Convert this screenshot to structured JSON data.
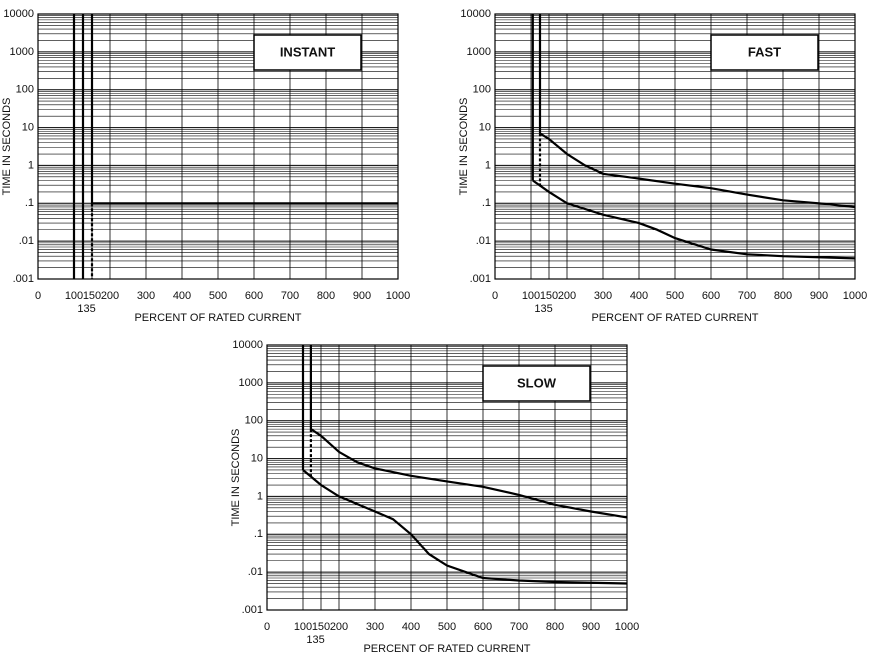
{
  "chart_data": [
    {
      "type": "line",
      "title": "INSTANT",
      "xlabel": "PERCENT OF RATED CURRENT",
      "ylabel": "TIME IN SECONDS",
      "yscale": "log",
      "grid": true,
      "xlim": [
        0,
        1000
      ],
      "xticks": [
        0,
        100,
        135,
        150,
        200,
        300,
        400,
        500,
        600,
        700,
        800,
        900,
        1000
      ],
      "ylim": [
        0.001,
        10000
      ],
      "yticks": [
        {
          "value": 0.001,
          "label": ".001"
        },
        {
          "value": 0.01,
          "label": ".01"
        },
        {
          "value": 0.1,
          "label": ".1"
        },
        1,
        10,
        100,
        1000,
        10000
      ],
      "series": [
        {
          "color": "#000000",
          "x": [
            100,
            100
          ],
          "values": [
            0.001,
            10000
          ]
        },
        {
          "color": "#000000",
          "x": [
            125,
            125
          ],
          "values": [
            0.001,
            10000
          ]
        },
        {
          "color": "#000000",
          "x": [
            150,
            150,
            1000
          ],
          "values": [
            10000,
            0.1,
            0.1
          ]
        },
        {
          "color": "#000000",
          "dashed": true,
          "x": [
            150,
            150
          ],
          "values": [
            0.1,
            0.001
          ]
        }
      ]
    },
    {
      "type": "line",
      "title": "FAST",
      "xlabel": "PERCENT OF RATED CURRENT",
      "ylabel": "TIME IN SECONDS",
      "yscale": "log",
      "grid": true,
      "xlim": [
        0,
        1000
      ],
      "xticks": [
        0,
        100,
        135,
        150,
        200,
        300,
        400,
        500,
        600,
        700,
        800,
        900,
        1000
      ],
      "ylim": [
        0.001,
        10000
      ],
      "yticks": [
        {
          "value": 0.001,
          "label": ".001"
        },
        {
          "value": 0.01,
          "label": ".01"
        },
        {
          "value": 0.1,
          "label": ".1"
        },
        1,
        10,
        100,
        1000,
        10000
      ],
      "series": [
        {
          "color": "#000000",
          "x": [
            105,
            105
          ],
          "values": [
            10000,
            0.4
          ]
        },
        {
          "color": "#000000",
          "x": [
            125,
            125
          ],
          "values": [
            10000,
            7
          ]
        },
        {
          "color": "#000000",
          "dashed": true,
          "x": [
            125,
            125
          ],
          "values": [
            7,
            0.25
          ]
        },
        {
          "color": "#000000",
          "x": [
            125,
            150,
            200,
            250,
            300,
            400,
            500,
            600,
            700,
            800,
            900,
            1000
          ],
          "values": [
            7,
            5,
            2,
            1,
            0.6,
            0.45,
            0.33,
            0.25,
            0.17,
            0.12,
            0.1,
            0.08
          ]
        },
        {
          "color": "#000000",
          "x": [
            105,
            150,
            200,
            300,
            400,
            450,
            500,
            600,
            700,
            800,
            1000
          ],
          "values": [
            0.4,
            0.2,
            0.1,
            0.05,
            0.03,
            0.02,
            0.012,
            0.006,
            0.0045,
            0.004,
            0.0035
          ]
        }
      ]
    },
    {
      "type": "line",
      "title": "SLOW",
      "xlabel": "PERCENT OF RATED CURRENT",
      "ylabel": "TIME IN SECONDS",
      "yscale": "log",
      "grid": true,
      "xlim": [
        0,
        1000
      ],
      "xticks": [
        0,
        100,
        135,
        150,
        200,
        300,
        400,
        500,
        600,
        700,
        800,
        900,
        1000
      ],
      "ylim": [
        0.001,
        10000
      ],
      "yticks": [
        {
          "value": 0.001,
          "label": ".001"
        },
        {
          "value": 0.01,
          "label": ".01"
        },
        {
          "value": 0.1,
          "label": ".1"
        },
        1,
        10,
        100,
        1000,
        10000
      ],
      "series": [
        {
          "color": "#000000",
          "x": [
            100,
            100
          ],
          "values": [
            10000,
            5
          ]
        },
        {
          "color": "#000000",
          "x": [
            122,
            122
          ],
          "values": [
            10000,
            60
          ]
        },
        {
          "color": "#000000",
          "dashed": true,
          "x": [
            122,
            122
          ],
          "values": [
            60,
            3
          ]
        },
        {
          "color": "#000000",
          "x": [
            122,
            150,
            200,
            250,
            300,
            400,
            500,
            600,
            700,
            800,
            900,
            1000
          ],
          "values": [
            60,
            40,
            15,
            8,
            5.5,
            3.5,
            2.5,
            1.8,
            1.1,
            0.6,
            0.4,
            0.28
          ]
        },
        {
          "color": "#000000",
          "x": [
            100,
            150,
            200,
            300,
            350,
            400,
            450,
            500,
            600,
            700,
            800,
            1000
          ],
          "values": [
            5,
            2,
            1,
            0.4,
            0.25,
            0.1,
            0.03,
            0.015,
            0.007,
            0.006,
            0.0055,
            0.005
          ]
        }
      ]
    }
  ]
}
